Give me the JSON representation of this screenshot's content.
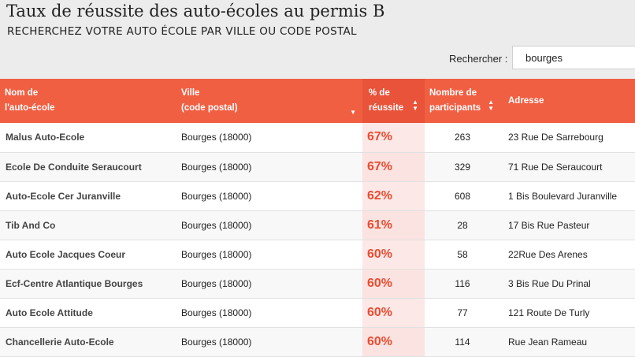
{
  "page": {
    "title": "Taux de réussite des auto-écoles au permis B",
    "subtitle": "RECHERCHEZ VOTRE AUTO ÉCOLE PAR VILLE OU CODE POSTAL"
  },
  "search": {
    "label": "Rechercher :",
    "value": "bourges"
  },
  "table": {
    "headers": {
      "name": [
        "Nom de",
        "l'auto-école"
      ],
      "city": [
        "Ville",
        "(code postal)"
      ],
      "rate": [
        "% de",
        "réussite"
      ],
      "count": [
        "Nombre de",
        "participants"
      ],
      "address": [
        "Adresse"
      ]
    },
    "sort": {
      "rate_icon": "sort-desc-icon",
      "count_icon": "sort-both-icon",
      "address_icon": "sort-both-icon"
    },
    "rows": [
      {
        "name": "Malus Auto-Ecole",
        "city": "Bourges (18000)",
        "rate": "67%",
        "count": "263",
        "address": "23 Rue De Sarrebourg"
      },
      {
        "name": "Ecole De Conduite Seraucourt",
        "city": "Bourges (18000)",
        "rate": "67%",
        "count": "329",
        "address": "71 Rue De Seraucourt"
      },
      {
        "name": "Auto-Ecole Cer Juranville",
        "city": "Bourges (18000)",
        "rate": "62%",
        "count": "608",
        "address": "1 Bis Boulevard Juranville"
      },
      {
        "name": "Tib And Co",
        "city": "Bourges (18000)",
        "rate": "61%",
        "count": "28",
        "address": "17 Bis Rue Pasteur"
      },
      {
        "name": "Auto Ecole Jacques Coeur",
        "city": "Bourges (18000)",
        "rate": "60%",
        "count": "58",
        "address": "22Rue Des Arenes"
      },
      {
        "name": "Ecf-Centre Atlantique Bourges",
        "city": "Bourges (18000)",
        "rate": "60%",
        "count": "116",
        "address": "3 Bis Rue Du Prinal"
      },
      {
        "name": "Auto Ecole Attitude",
        "city": "Bourges (18000)",
        "rate": "60%",
        "count": "77",
        "address": "121 Route De Turly"
      },
      {
        "name": "Chancellerie Auto-Ecole",
        "city": "Bourges (18000)",
        "rate": "60%",
        "count": "114",
        "address": "Rue Jean Rameau"
      }
    ]
  },
  "colors": {
    "header_bg": "#f15f43",
    "rate_text": "#e84c32",
    "rate_column_bg": "#fce8e6"
  }
}
